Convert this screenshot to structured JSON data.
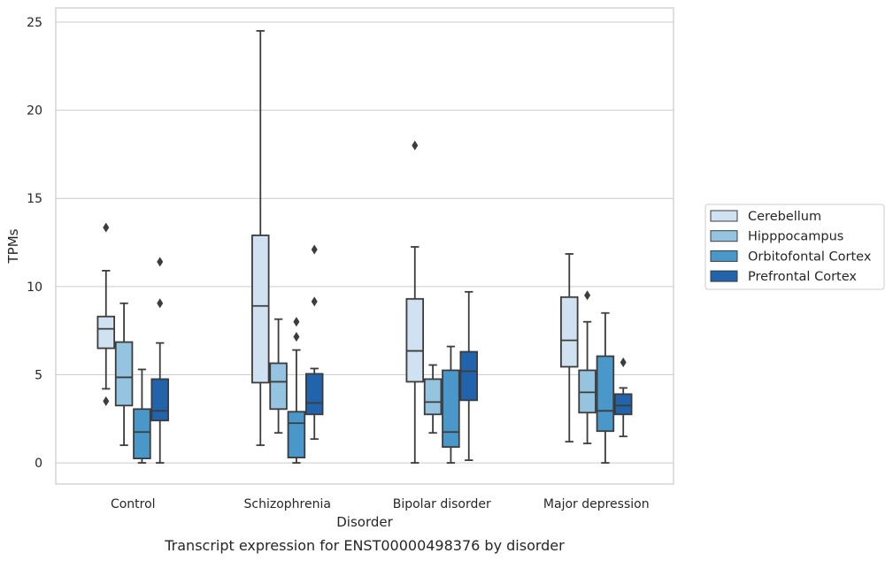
{
  "caption": "Transcript expression for ENST00000498376 by disorder",
  "chart_data": {
    "type": "box",
    "title": "",
    "xlabel": "Disorder",
    "ylabel": "TPMs",
    "ylim": [
      -1.2,
      25.8
    ],
    "yticks": [
      0,
      5,
      10,
      15,
      20,
      25
    ],
    "grid": "horizontal",
    "legend_position": "right",
    "categories": [
      "Control",
      "Schizophrenia",
      "Bipolar disorder",
      "Major depression"
    ],
    "series": [
      {
        "name": "Cerebellum",
        "color": "#d0e1f2",
        "boxes": [
          {
            "whisker_low": 4.2,
            "q1": 6.5,
            "median": 7.6,
            "q3": 8.3,
            "whisker_high": 10.9,
            "outliers": [
              13.35,
              3.5
            ]
          },
          {
            "whisker_low": 1.0,
            "q1": 4.55,
            "median": 8.9,
            "q3": 12.9,
            "whisker_high": 24.5,
            "outliers": []
          },
          {
            "whisker_low": 0.0,
            "q1": 4.6,
            "median": 6.35,
            "q3": 9.3,
            "whisker_high": 12.25,
            "outliers": [
              18.0
            ]
          },
          {
            "whisker_low": 1.2,
            "q1": 5.45,
            "median": 6.95,
            "q3": 9.4,
            "whisker_high": 11.85,
            "outliers": []
          }
        ]
      },
      {
        "name": "Hipppocampus",
        "color": "#94c4df",
        "boxes": [
          {
            "whisker_low": 1.0,
            "q1": 3.25,
            "median": 4.85,
            "q3": 6.85,
            "whisker_high": 9.05,
            "outliers": []
          },
          {
            "whisker_low": 1.7,
            "q1": 3.05,
            "median": 4.6,
            "q3": 5.65,
            "whisker_high": 8.15,
            "outliers": []
          },
          {
            "whisker_low": 1.7,
            "q1": 2.75,
            "median": 3.45,
            "q3": 4.75,
            "whisker_high": 5.55,
            "outliers": []
          },
          {
            "whisker_low": 1.1,
            "q1": 2.85,
            "median": 4.0,
            "q3": 5.25,
            "whisker_high": 8.0,
            "outliers": [
              9.5
            ]
          }
        ]
      },
      {
        "name": "Orbitofontal Cortex",
        "color": "#4a98c9",
        "boxes": [
          {
            "whisker_low": 0.0,
            "q1": 0.25,
            "median": 1.75,
            "q3": 3.05,
            "whisker_high": 5.3,
            "outliers": []
          },
          {
            "whisker_low": 0.0,
            "q1": 0.3,
            "median": 2.25,
            "q3": 2.9,
            "whisker_high": 6.4,
            "outliers": [
              8.0,
              7.15
            ]
          },
          {
            "whisker_low": 0.0,
            "q1": 0.9,
            "median": 1.75,
            "q3": 5.25,
            "whisker_high": 6.6,
            "outliers": []
          },
          {
            "whisker_low": 0.0,
            "q1": 1.8,
            "median": 2.95,
            "q3": 6.05,
            "whisker_high": 8.5,
            "outliers": []
          }
        ]
      },
      {
        "name": "Prefrontal Cortex",
        "color": "#2164ab",
        "boxes": [
          {
            "whisker_low": 0.0,
            "q1": 2.4,
            "median": 2.95,
            "q3": 4.75,
            "whisker_high": 6.8,
            "outliers": [
              11.4,
              9.05
            ]
          },
          {
            "whisker_low": 1.35,
            "q1": 2.75,
            "median": 3.4,
            "q3": 5.05,
            "whisker_high": 5.35,
            "outliers": [
              12.1,
              9.15
            ]
          },
          {
            "whisker_low": 0.15,
            "q1": 3.55,
            "median": 5.2,
            "q3": 6.3,
            "whisker_high": 9.7,
            "outliers": []
          },
          {
            "whisker_low": 1.5,
            "q1": 2.75,
            "median": 3.25,
            "q3": 3.9,
            "whisker_high": 4.25,
            "outliers": [
              5.7
            ]
          }
        ]
      }
    ]
  }
}
